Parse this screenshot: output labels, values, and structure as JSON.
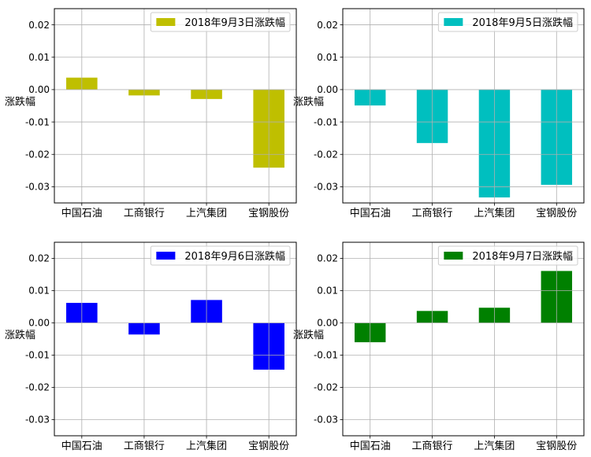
{
  "chart_data": [
    {
      "type": "bar",
      "categories": [
        "中国石油",
        "工商银行",
        "上汽集团",
        "宝钢股份"
      ],
      "series": [
        {
          "name": "2018年9月3日涨跌幅",
          "values": [
            0.0037,
            -0.0018,
            -0.0029,
            -0.0241
          ],
          "color": "#bfbf00"
        }
      ],
      "ylabel": "涨跌幅",
      "ylim": [
        -0.035,
        0.025
      ],
      "yticks": [
        0.02,
        0.01,
        0.0,
        -0.01,
        -0.02,
        -0.03
      ],
      "ytick_labels": [
        "0.02",
        "0.01",
        "0.00",
        "-0.01",
        "-0.02",
        "-0.03"
      ],
      "grid": true,
      "legend": "upper-right"
    },
    {
      "type": "bar",
      "categories": [
        "中国石油",
        "工商银行",
        "上汽集团",
        "宝钢股份"
      ],
      "series": [
        {
          "name": "2018年9月5日涨跌幅",
          "values": [
            -0.0049,
            -0.0165,
            -0.0333,
            -0.0294
          ],
          "color": "#00bfbf"
        }
      ],
      "ylabel": "涨跌幅",
      "ylim": [
        -0.035,
        0.025
      ],
      "yticks": [
        0.02,
        0.01,
        0.0,
        -0.01,
        -0.02,
        -0.03
      ],
      "ytick_labels": [
        "0.02",
        "0.01",
        "0.00",
        "-0.01",
        "-0.02",
        "-0.03"
      ],
      "grid": true,
      "legend": "upper-right"
    },
    {
      "type": "bar",
      "categories": [
        "中国石油",
        "工商银行",
        "上汽集团",
        "宝钢股份"
      ],
      "series": [
        {
          "name": "2018年9月6日涨跌幅",
          "values": [
            0.0062,
            -0.0036,
            0.0071,
            -0.0145
          ],
          "color": "#0000ff"
        }
      ],
      "ylabel": "涨跌幅",
      "ylim": [
        -0.035,
        0.025
      ],
      "yticks": [
        0.02,
        0.01,
        0.0,
        -0.01,
        -0.02,
        -0.03
      ],
      "ytick_labels": [
        "0.02",
        "0.01",
        "0.00",
        "-0.01",
        "-0.02",
        "-0.03"
      ],
      "grid": true,
      "legend": "upper-right"
    },
    {
      "type": "bar",
      "categories": [
        "中国石油",
        "工商银行",
        "上汽集团",
        "宝钢股份"
      ],
      "series": [
        {
          "name": "2018年9月7日涨跌幅",
          "values": [
            -0.006,
            0.0037,
            0.0047,
            0.0161
          ],
          "color": "#008000"
        }
      ],
      "ylabel": "涨跌幅",
      "ylim": [
        -0.035,
        0.025
      ],
      "yticks": [
        0.02,
        0.01,
        0.0,
        -0.01,
        -0.02,
        -0.03
      ],
      "ytick_labels": [
        "0.02",
        "0.01",
        "0.00",
        "-0.01",
        "-0.02",
        "-0.03"
      ],
      "grid": true,
      "legend": "upper-right"
    }
  ]
}
